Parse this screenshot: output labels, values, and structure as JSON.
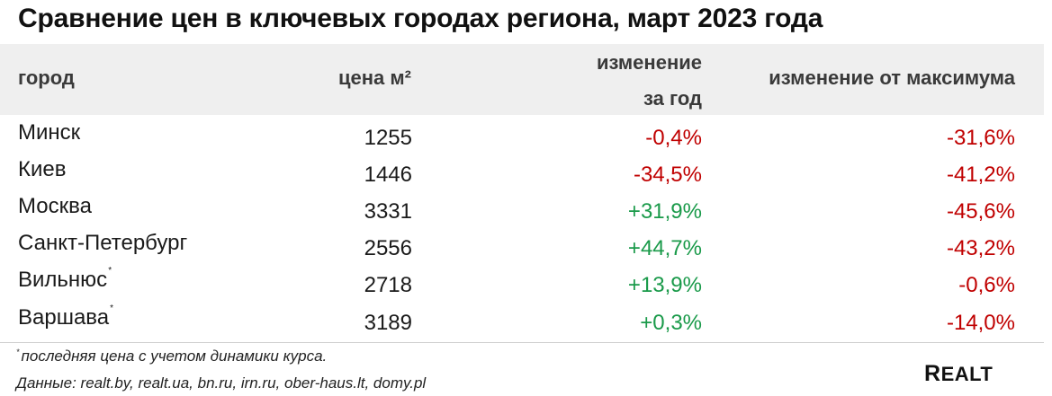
{
  "title": "Сравнение цен в ключевых городах региона, март 2023 года",
  "headers": {
    "city": "город",
    "price": "цена м²",
    "year_change_line1": "изменение",
    "year_change_line2": "за год",
    "max_change": "изменение от  максимума"
  },
  "rows": [
    {
      "city": "Минск",
      "marker": "",
      "price": "1255",
      "year_change": "-0,4%",
      "max_change": "-31,6%"
    },
    {
      "city": "Киев",
      "marker": "",
      "price": "1446",
      "year_change": "-34,5%",
      "max_change": "-41,2%"
    },
    {
      "city": "Москва",
      "marker": "",
      "price": "3331",
      "year_change": "+31,9%",
      "max_change": "-45,6%"
    },
    {
      "city": "Санкт-Петербург",
      "marker": "",
      "price": "2556",
      "year_change": "+44,7%",
      "max_change": "-43,2%"
    },
    {
      "city": "Вильнюс",
      "marker": "*",
      "price": "2718",
      "year_change": "+13,9%",
      "max_change": "-0,6%"
    },
    {
      "city": "Варшава",
      "marker": "*",
      "price": "3189",
      "year_change": "+0,3%",
      "max_change": "-14,0%"
    }
  ],
  "footnote": {
    "marker": "*",
    "text": "последняя цена с учетом динамики курса."
  },
  "source": "Данные: realt.by, realt.ua, bn.ru, irn.ru, ober-haus.lt, domy.pl",
  "logo": {
    "first": "R",
    "rest": "EALT"
  },
  "colors": {
    "negative": "#c00000",
    "positive": "#1a9a4a",
    "header_bg": "#efefef"
  }
}
